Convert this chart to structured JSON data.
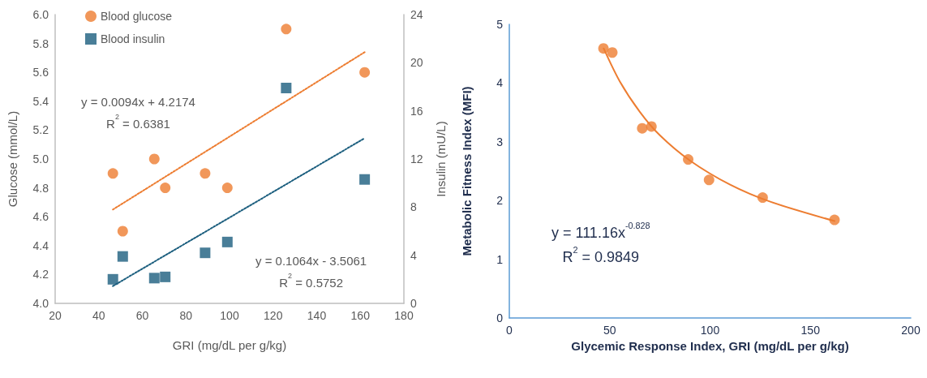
{
  "chart_data": [
    {
      "type": "scatter",
      "xlabel": "GRI (mg/dL per g/kg)",
      "ylabel": "Glucose (mmol/L)",
      "y2label": "Insulin (mU/L)",
      "xlim": [
        20,
        180
      ],
      "xticks": [
        20,
        40,
        60,
        80,
        100,
        120,
        140,
        160,
        180
      ],
      "ylim": [
        4,
        6
      ],
      "yticks": [
        {
          "value": 4,
          "label": "4.0"
        },
        4.2,
        4.4,
        4.6,
        4.8,
        {
          "value": 5,
          "label": "5.0"
        },
        5.2,
        5.4,
        5.6,
        5.8,
        {
          "value": 6,
          "label": "6.0"
        }
      ],
      "y2lim": [
        0,
        24
      ],
      "y2ticks": [
        0,
        4,
        8,
        12,
        16,
        20,
        24
      ],
      "grid": false,
      "legend": "top left",
      "series": [
        {
          "name": "Blood glucose",
          "marker": "circle",
          "color": "#ed7d31",
          "x": [
            46.5,
            51,
            65.5,
            70.5,
            88.8,
            99,
            126,
            162
          ],
          "values": [
            4.9,
            4.5,
            5.0,
            4.8,
            4.9,
            4.8,
            5.9,
            5.6
          ]
        },
        {
          "name": "Blood insulin",
          "marker": "square",
          "axis": "y2",
          "color": "#1b5e7e",
          "x": [
            46.5,
            51,
            65.5,
            70.5,
            88.8,
            99,
            126,
            162
          ],
          "values": [
            2.0,
            3.9,
            2.1,
            2.2,
            4.2,
            5.1,
            17.9,
            10.3
          ]
        },
        {
          "type": "line",
          "marker": "none",
          "line_style": "dotted",
          "color": "#ed7d31",
          "x": [
            46.5,
            162
          ],
          "values": [
            4.65,
            5.74
          ]
        },
        {
          "type": "line",
          "marker": "none",
          "line_style": "dotted",
          "axis": "y2",
          "color": "#1b5e7e",
          "x": [
            46.5,
            162
          ],
          "values": [
            1.44,
            13.73
          ]
        }
      ],
      "annotations": [
        "y = 0.0094x + 4.2174\nR$^{2}$ = 0.6381",
        "y = 0.1064x - 3.5061\nR$^{2}$ = 0.5752"
      ]
    },
    {
      "type": "scatter",
      "xlabel": "Glycemic Response Index, GRI (mg/dL per g/kg)",
      "ylabel": "Metabolic Fitness Index (MFI)",
      "xlim": [
        0,
        200
      ],
      "xticks": [
        0,
        50,
        100,
        150,
        200
      ],
      "ylim": [
        0,
        5
      ],
      "yticks": [
        0,
        1,
        2,
        3,
        4,
        5
      ],
      "grid": false,
      "legend": false,
      "series": [
        {
          "marker": "circle",
          "color": "#ed7d31",
          "x": [
            46.9,
            51.3,
            66.2,
            70.8,
            89.1,
            99.5,
            126.2,
            162
          ],
          "values": [
            4.59,
            4.52,
            3.23,
            3.26,
            2.7,
            2.35,
            2.05,
            1.67
          ]
        },
        {
          "type": "line",
          "marker": "none",
          "line_style": "solid",
          "color": "#ed7d31",
          "x": [
            47,
            55,
            65,
            75,
            90,
            110,
            130,
            162
          ],
          "values": [
            4.59,
            4.03,
            3.51,
            3.11,
            2.68,
            2.27,
            1.98,
            1.65
          ]
        }
      ],
      "annotations": [
        "y = 111.16x$^{-0.828}$\nR$^{2}$ = 0.9849"
      ]
    }
  ]
}
